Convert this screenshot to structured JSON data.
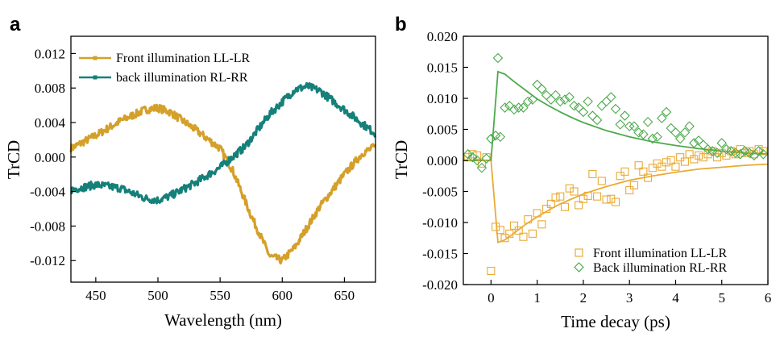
{
  "panels": {
    "a": {
      "label": "a"
    },
    "b": {
      "label": "b"
    }
  },
  "colors": {
    "front_a": "#D4A02A",
    "back_a": "#15807A",
    "front_b": "#EAAA35",
    "back_b": "#4DAA4D"
  },
  "chart_data": [
    {
      "type": "line",
      "panel": "a",
      "xlabel": "Wavelength (nm)",
      "ylabel": "TrCD",
      "xlim": [
        430,
        675
      ],
      "ylim": [
        -0.0145,
        0.014
      ],
      "xticks": [
        450,
        500,
        550,
        600,
        650
      ],
      "xtick_labels": [
        "450",
        "500",
        "550",
        "600",
        "650"
      ],
      "yticks": [
        0.012,
        0.008,
        0.004,
        0.0,
        -0.004,
        -0.008,
        -0.012
      ],
      "ytick_labels": [
        "0.012",
        "0.008",
        "0.004",
        "0.000",
        "-0.004",
        "-0.008",
        "-0.012"
      ],
      "legend_position": "top-left",
      "series": [
        {
          "name": "Front illumination LL-LR",
          "x": [
            430,
            450,
            470,
            490,
            500,
            510,
            530,
            550,
            560,
            575,
            590,
            600,
            610,
            630,
            650,
            665,
            675
          ],
          "y": [
            0.001,
            0.0025,
            0.0042,
            0.0055,
            0.0057,
            0.0052,
            0.0032,
            0.001,
            -0.0015,
            -0.0068,
            -0.0115,
            -0.012,
            -0.0105,
            -0.0058,
            -0.002,
            0.0005,
            0.0012
          ]
        },
        {
          "name": "back illumination RL-RR",
          "x": [
            430,
            450,
            470,
            490,
            500,
            510,
            530,
            550,
            570,
            590,
            610,
            620,
            630,
            650,
            665,
            675
          ],
          "y": [
            -0.0038,
            -0.0032,
            -0.0036,
            -0.0048,
            -0.005,
            -0.0045,
            -0.003,
            -0.0012,
            0.0012,
            0.005,
            0.0078,
            0.0082,
            0.0077,
            0.0055,
            0.0038,
            0.0027
          ]
        }
      ]
    },
    {
      "type": "scatter",
      "panel": "b",
      "xlabel": "Time decay (ps)",
      "ylabel": "TrCD",
      "xlim": [
        -0.6,
        6
      ],
      "ylim": [
        -0.02,
        0.02
      ],
      "xticks": [
        0,
        1,
        2,
        3,
        4,
        5,
        6
      ],
      "xtick_labels": [
        "0",
        "1",
        "2",
        "3",
        "4",
        "5",
        "6"
      ],
      "yticks": [
        0.02,
        0.015,
        0.01,
        0.005,
        0.0,
        -0.005,
        -0.01,
        -0.015,
        -0.02
      ],
      "ytick_labels": [
        "0.020",
        "0.015",
        "0.010",
        "0.005",
        "0.000",
        "-0.005",
        "-0.010",
        "-0.015",
        "-0.020"
      ],
      "legend_position": "bottom-right",
      "series": [
        {
          "name": "Front illumination LL-LR",
          "marker": "square",
          "x": [
            -0.5,
            -0.4,
            -0.3,
            -0.2,
            -0.1,
            0.0,
            0.1,
            0.2,
            0.3,
            0.4,
            0.5,
            0.6,
            0.7,
            0.8,
            0.9,
            1.0,
            1.1,
            1.2,
            1.3,
            1.4,
            1.5,
            1.6,
            1.7,
            1.8,
            1.9,
            2.0,
            2.1,
            2.2,
            2.3,
            2.4,
            2.5,
            2.6,
            2.7,
            2.8,
            2.9,
            3.0,
            3.1,
            3.2,
            3.3,
            3.4,
            3.5,
            3.6,
            3.7,
            3.8,
            3.9,
            4.0,
            4.1,
            4.2,
            4.3,
            4.4,
            4.5,
            4.6,
            4.7,
            4.8,
            4.9,
            5.0,
            5.1,
            5.2,
            5.3,
            5.4,
            5.5,
            5.6,
            5.7,
            5.8,
            5.9
          ],
          "y": [
            0.0005,
            0.001,
            0.0008,
            -0.0005,
            0.0005,
            -0.0178,
            -0.0107,
            -0.0112,
            -0.0125,
            -0.0118,
            -0.0105,
            -0.0113,
            -0.0123,
            -0.0095,
            -0.0118,
            -0.0085,
            -0.0103,
            -0.0078,
            -0.007,
            -0.006,
            -0.0058,
            -0.0075,
            -0.0045,
            -0.005,
            -0.0072,
            -0.0062,
            -0.0057,
            -0.0022,
            -0.0058,
            -0.0033,
            -0.0063,
            -0.0062,
            -0.0067,
            -0.0025,
            -0.0018,
            -0.0048,
            -0.004,
            -0.0008,
            -0.0018,
            -0.0028,
            -0.0012,
            -0.0005,
            -0.001,
            -0.0003,
            0.0,
            -0.001,
            0.0005,
            -0.0002,
            0.001,
            0.0002,
            0.0008,
            0.0005,
            0.001,
            0.0015,
            0.0005,
            0.0012,
            0.0008,
            0.0015,
            0.001,
            0.0018,
            0.0012,
            0.0015,
            0.001,
            0.0018,
            0.0015
          ]
        },
        {
          "name": "Back illumination RL-RR",
          "marker": "diamond",
          "x": [
            -0.5,
            -0.4,
            -0.3,
            -0.2,
            -0.1,
            0.0,
            0.1,
            0.15,
            0.2,
            0.3,
            0.4,
            0.5,
            0.6,
            0.7,
            0.8,
            0.9,
            1.0,
            1.1,
            1.2,
            1.3,
            1.4,
            1.5,
            1.6,
            1.7,
            1.8,
            1.9,
            2.0,
            2.1,
            2.2,
            2.3,
            2.4,
            2.5,
            2.6,
            2.7,
            2.8,
            2.9,
            3.0,
            3.1,
            3.2,
            3.3,
            3.4,
            3.5,
            3.6,
            3.7,
            3.8,
            3.9,
            4.0,
            4.1,
            4.2,
            4.3,
            4.4,
            4.5,
            4.6,
            4.7,
            4.8,
            4.9,
            5.0,
            5.1,
            5.2,
            5.3,
            5.4,
            5.5,
            5.6,
            5.7,
            5.8,
            5.9
          ],
          "y": [
            0.001,
            0.0005,
            0.0,
            -0.0012,
            0.0003,
            0.0035,
            0.004,
            0.0165,
            0.0038,
            0.0085,
            0.0088,
            0.0082,
            0.0085,
            0.0085,
            0.0095,
            0.0098,
            0.0122,
            0.0115,
            0.0105,
            0.0098,
            0.0105,
            0.0095,
            0.0098,
            0.0102,
            0.0088,
            0.0085,
            0.0078,
            0.0095,
            0.0072,
            0.0065,
            0.0088,
            0.0095,
            0.0102,
            0.0083,
            0.0058,
            0.0072,
            0.0055,
            0.0055,
            0.0045,
            0.0042,
            0.0062,
            0.0035,
            0.0038,
            0.0068,
            0.0078,
            0.0052,
            0.0045,
            0.0035,
            0.0045,
            0.0055,
            0.0028,
            0.0032,
            0.0025,
            0.0018,
            0.0015,
            0.0012,
            0.0028,
            0.0018,
            0.0015,
            0.0012,
            0.001,
            0.0015,
            0.0012,
            0.0008,
            0.0015,
            0.001
          ]
        },
        {
          "name": "Front fit",
          "kind": "fit",
          "x": [
            -0.6,
            0.0,
            0.15,
            0.3,
            0.5,
            0.75,
            1.0,
            1.25,
            1.5,
            1.75,
            2.0,
            2.5,
            3.0,
            3.5,
            4.0,
            4.5,
            5.0,
            5.5,
            6.0
          ],
          "y": [
            0.0,
            0.0,
            -0.0132,
            -0.0128,
            -0.0117,
            -0.0103,
            -0.0091,
            -0.008,
            -0.007,
            -0.0062,
            -0.0054,
            -0.0042,
            -0.0032,
            -0.0025,
            -0.0019,
            -0.0014,
            -0.0011,
            -0.0008,
            -0.0006
          ]
        },
        {
          "name": "Back fit",
          "kind": "fit",
          "x": [
            -0.6,
            0.0,
            0.15,
            0.3,
            0.5,
            0.75,
            1.0,
            1.25,
            1.5,
            1.75,
            2.0,
            2.5,
            3.0,
            3.5,
            4.0,
            4.5,
            5.0,
            5.5,
            6.0
          ],
          "y": [
            0.0,
            0.0,
            0.0143,
            0.0139,
            0.0127,
            0.0113,
            0.0099,
            0.0088,
            0.0078,
            0.0069,
            0.0061,
            0.0048,
            0.0038,
            0.003,
            0.0024,
            0.0019,
            0.0015,
            0.0012,
            0.001
          ]
        }
      ]
    }
  ]
}
